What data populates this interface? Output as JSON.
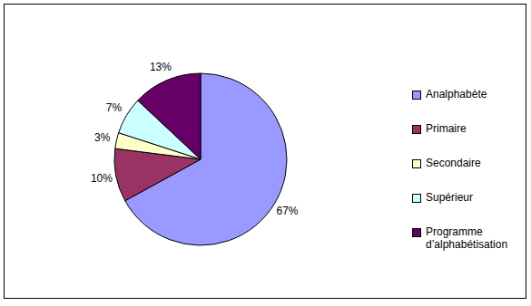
{
  "chart_data": {
    "type": "pie",
    "categories": [
      "Analphabète",
      "Primaire",
      "Secondaire",
      "Supérieur",
      "Programme d’alphabétisation"
    ],
    "values": [
      67,
      10,
      3,
      7,
      13
    ],
    "value_labels": [
      "67%",
      "10%",
      "3%",
      "7%",
      "13%"
    ],
    "colors": [
      "#9999ff",
      "#993366",
      "#ffffcc",
      "#ccffff",
      "#660066"
    ],
    "data_labels": true,
    "legend": "right"
  }
}
